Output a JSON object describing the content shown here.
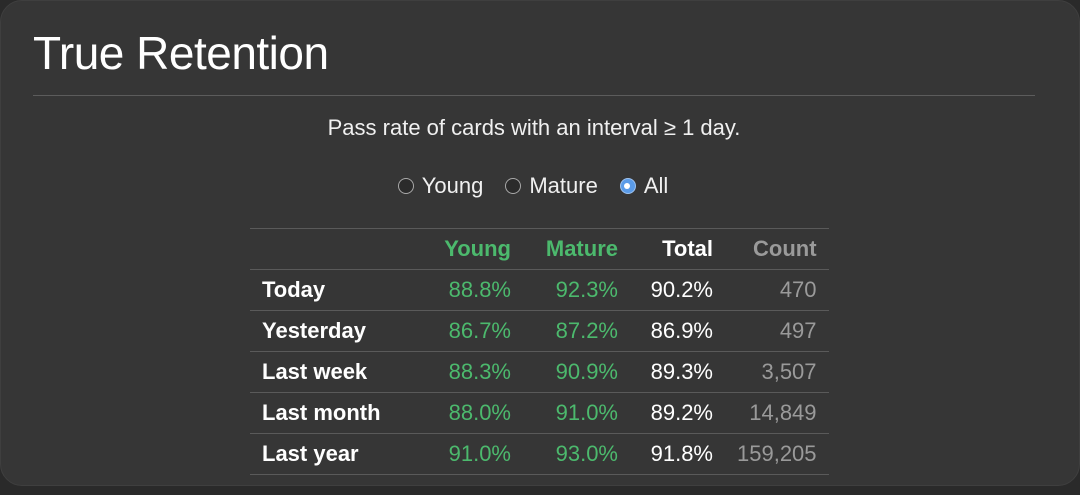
{
  "title": "True Retention",
  "subtitle": "Pass rate of cards with an interval ≥ 1 day.",
  "filter": {
    "options": [
      {
        "label": "Young",
        "checked": false
      },
      {
        "label": "Mature",
        "checked": false
      },
      {
        "label": "All",
        "checked": true
      }
    ]
  },
  "table": {
    "headers": {
      "label": "",
      "young": "Young",
      "mature": "Mature",
      "total": "Total",
      "count": "Count"
    },
    "rows": [
      {
        "label": "Today",
        "young": "88.8%",
        "mature": "92.3%",
        "total": "90.2%",
        "count": "470"
      },
      {
        "label": "Yesterday",
        "young": "86.7%",
        "mature": "87.2%",
        "total": "86.9%",
        "count": "497"
      },
      {
        "label": "Last week",
        "young": "88.3%",
        "mature": "90.9%",
        "total": "89.3%",
        "count": "3,507"
      },
      {
        "label": "Last month",
        "young": "88.0%",
        "mature": "91.0%",
        "total": "89.2%",
        "count": "14,849"
      },
      {
        "label": "Last year",
        "young": "91.0%",
        "mature": "93.0%",
        "total": "91.8%",
        "count": "159,205"
      }
    ]
  },
  "colors": {
    "background": "#363636",
    "young_mature": "#4cb96d",
    "count": "#9a9a9a",
    "radio_accent": "#5a9be8"
  }
}
